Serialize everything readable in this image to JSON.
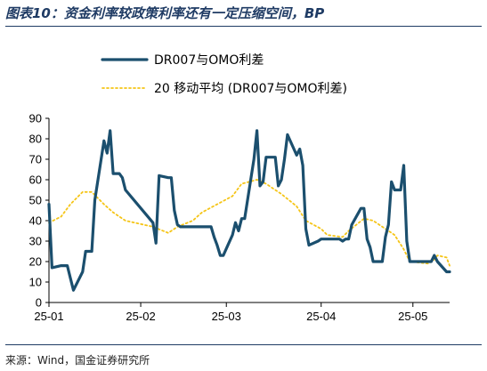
{
  "title": "图表10：资金利率较政策利率还有一定压缩空间，BP",
  "source": "来源：Wind，国金证券研究所",
  "colors": {
    "title": "#1f3b64",
    "series_main": "#1b4f6e",
    "series_ma": "#f5c518",
    "axis": "#000000"
  },
  "chart_data": {
    "type": "line",
    "x_tick_labels": [
      "25-01",
      "25-02",
      "25-03",
      "25-04",
      "25-05"
    ],
    "y_ticks": [
      0,
      10,
      20,
      30,
      40,
      50,
      60,
      70,
      80,
      90
    ],
    "ylim": [
      0,
      90
    ],
    "xlim": [
      "2025-01-02",
      "2025-05-13"
    ],
    "grid": false,
    "legend_position": "top",
    "series": [
      {
        "name": "DR007与OMO利差",
        "style": "solid-thick",
        "points": [
          [
            "2025-01-02",
            48
          ],
          [
            "2025-01-03",
            17
          ],
          [
            "2025-01-06",
            18
          ],
          [
            "2025-01-07",
            18
          ],
          [
            "2025-01-08",
            18
          ],
          [
            "2025-01-09",
            12
          ],
          [
            "2025-01-10",
            6
          ],
          [
            "2025-01-13",
            15
          ],
          [
            "2025-01-14",
            25
          ],
          [
            "2025-01-15",
            25
          ],
          [
            "2025-01-16",
            25
          ],
          [
            "2025-01-17",
            50
          ],
          [
            "2025-01-20",
            79
          ],
          [
            "2025-01-21",
            73
          ],
          [
            "2025-01-22",
            84
          ],
          [
            "2025-01-23",
            63
          ],
          [
            "2025-01-24",
            63
          ],
          [
            "2025-01-25",
            63
          ],
          [
            "2025-01-26",
            61
          ],
          [
            "2025-01-27",
            55
          ],
          [
            "2025-02-05",
            39
          ],
          [
            "2025-02-06",
            29
          ],
          [
            "2025-02-07",
            62
          ],
          [
            "2025-02-10",
            61
          ],
          [
            "2025-02-11",
            61
          ],
          [
            "2025-02-12",
            45
          ],
          [
            "2025-02-13",
            38
          ],
          [
            "2025-02-14",
            37
          ],
          [
            "2025-02-17",
            37
          ],
          [
            "2025-02-18",
            37
          ],
          [
            "2025-02-19",
            37
          ],
          [
            "2025-02-20",
            37
          ],
          [
            "2025-02-21",
            37
          ],
          [
            "2025-02-24",
            37
          ],
          [
            "2025-02-25",
            32
          ],
          [
            "2025-02-26",
            28
          ],
          [
            "2025-02-27",
            23
          ],
          [
            "2025-02-28",
            23
          ],
          [
            "2025-03-03",
            33
          ],
          [
            "2025-03-04",
            39
          ],
          [
            "2025-03-05",
            35
          ],
          [
            "2025-03-06",
            41
          ],
          [
            "2025-03-07",
            41
          ],
          [
            "2025-03-10",
            70
          ],
          [
            "2025-03-11",
            84
          ],
          [
            "2025-03-12",
            57
          ],
          [
            "2025-03-13",
            59
          ],
          [
            "2025-03-14",
            71
          ],
          [
            "2025-03-17",
            71
          ],
          [
            "2025-03-18",
            57
          ],
          [
            "2025-03-19",
            60
          ],
          [
            "2025-03-20",
            70
          ],
          [
            "2025-03-21",
            82
          ],
          [
            "2025-03-24",
            72
          ],
          [
            "2025-03-25",
            75
          ],
          [
            "2025-03-26",
            67
          ],
          [
            "2025-03-27",
            36
          ],
          [
            "2025-03-28",
            28
          ],
          [
            "2025-03-31",
            30
          ],
          [
            "2025-04-01",
            31
          ],
          [
            "2025-04-02",
            31
          ],
          [
            "2025-04-03",
            31
          ],
          [
            "2025-04-07",
            31
          ],
          [
            "2025-04-08",
            30
          ],
          [
            "2025-04-09",
            31
          ],
          [
            "2025-04-10",
            31
          ],
          [
            "2025-04-11",
            38
          ],
          [
            "2025-04-14",
            46
          ],
          [
            "2025-04-15",
            46
          ],
          [
            "2025-04-16",
            31
          ],
          [
            "2025-04-17",
            27
          ],
          [
            "2025-04-18",
            20
          ],
          [
            "2025-04-21",
            20
          ],
          [
            "2025-04-22",
            32
          ],
          [
            "2025-04-23",
            38
          ],
          [
            "2025-04-24",
            59
          ],
          [
            "2025-04-25",
            55
          ],
          [
            "2025-04-27",
            55
          ],
          [
            "2025-04-28",
            67
          ],
          [
            "2025-04-29",
            30
          ],
          [
            "2025-04-30",
            20
          ],
          [
            "2025-05-06",
            20
          ],
          [
            "2025-05-07",
            20
          ],
          [
            "2025-05-08",
            23
          ],
          [
            "2025-05-09",
            20
          ],
          [
            "2025-05-12",
            15
          ],
          [
            "2025-05-13",
            15
          ]
        ]
      },
      {
        "name": "20 移动平均 (DR007与OMO利差)",
        "style": "dotted",
        "points": [
          [
            "2025-01-02",
            39
          ],
          [
            "2025-01-06",
            42
          ],
          [
            "2025-01-09",
            48
          ],
          [
            "2025-01-13",
            54
          ],
          [
            "2025-01-16",
            54
          ],
          [
            "2025-01-20",
            48
          ],
          [
            "2025-01-23",
            44
          ],
          [
            "2025-01-27",
            40
          ],
          [
            "2025-02-05",
            37
          ],
          [
            "2025-02-10",
            34
          ],
          [
            "2025-02-13",
            37
          ],
          [
            "2025-02-18",
            40
          ],
          [
            "2025-02-21",
            44
          ],
          [
            "2025-02-26",
            48
          ],
          [
            "2025-03-03",
            52
          ],
          [
            "2025-03-06",
            58
          ],
          [
            "2025-03-11",
            60
          ],
          [
            "2025-03-14",
            58
          ],
          [
            "2025-03-19",
            53
          ],
          [
            "2025-03-24",
            47
          ],
          [
            "2025-03-27",
            40
          ],
          [
            "2025-04-01",
            36
          ],
          [
            "2025-04-03",
            33
          ],
          [
            "2025-04-08",
            32
          ],
          [
            "2025-04-10",
            35
          ],
          [
            "2025-04-15",
            41
          ],
          [
            "2025-04-18",
            40
          ],
          [
            "2025-04-22",
            36
          ],
          [
            "2025-04-25",
            33
          ],
          [
            "2025-04-28",
            26
          ],
          [
            "2025-04-30",
            20
          ],
          [
            "2025-05-06",
            19
          ],
          [
            "2025-05-08",
            21
          ],
          [
            "2025-05-09",
            23
          ],
          [
            "2025-05-12",
            22
          ],
          [
            "2025-05-13",
            18
          ]
        ]
      }
    ]
  }
}
